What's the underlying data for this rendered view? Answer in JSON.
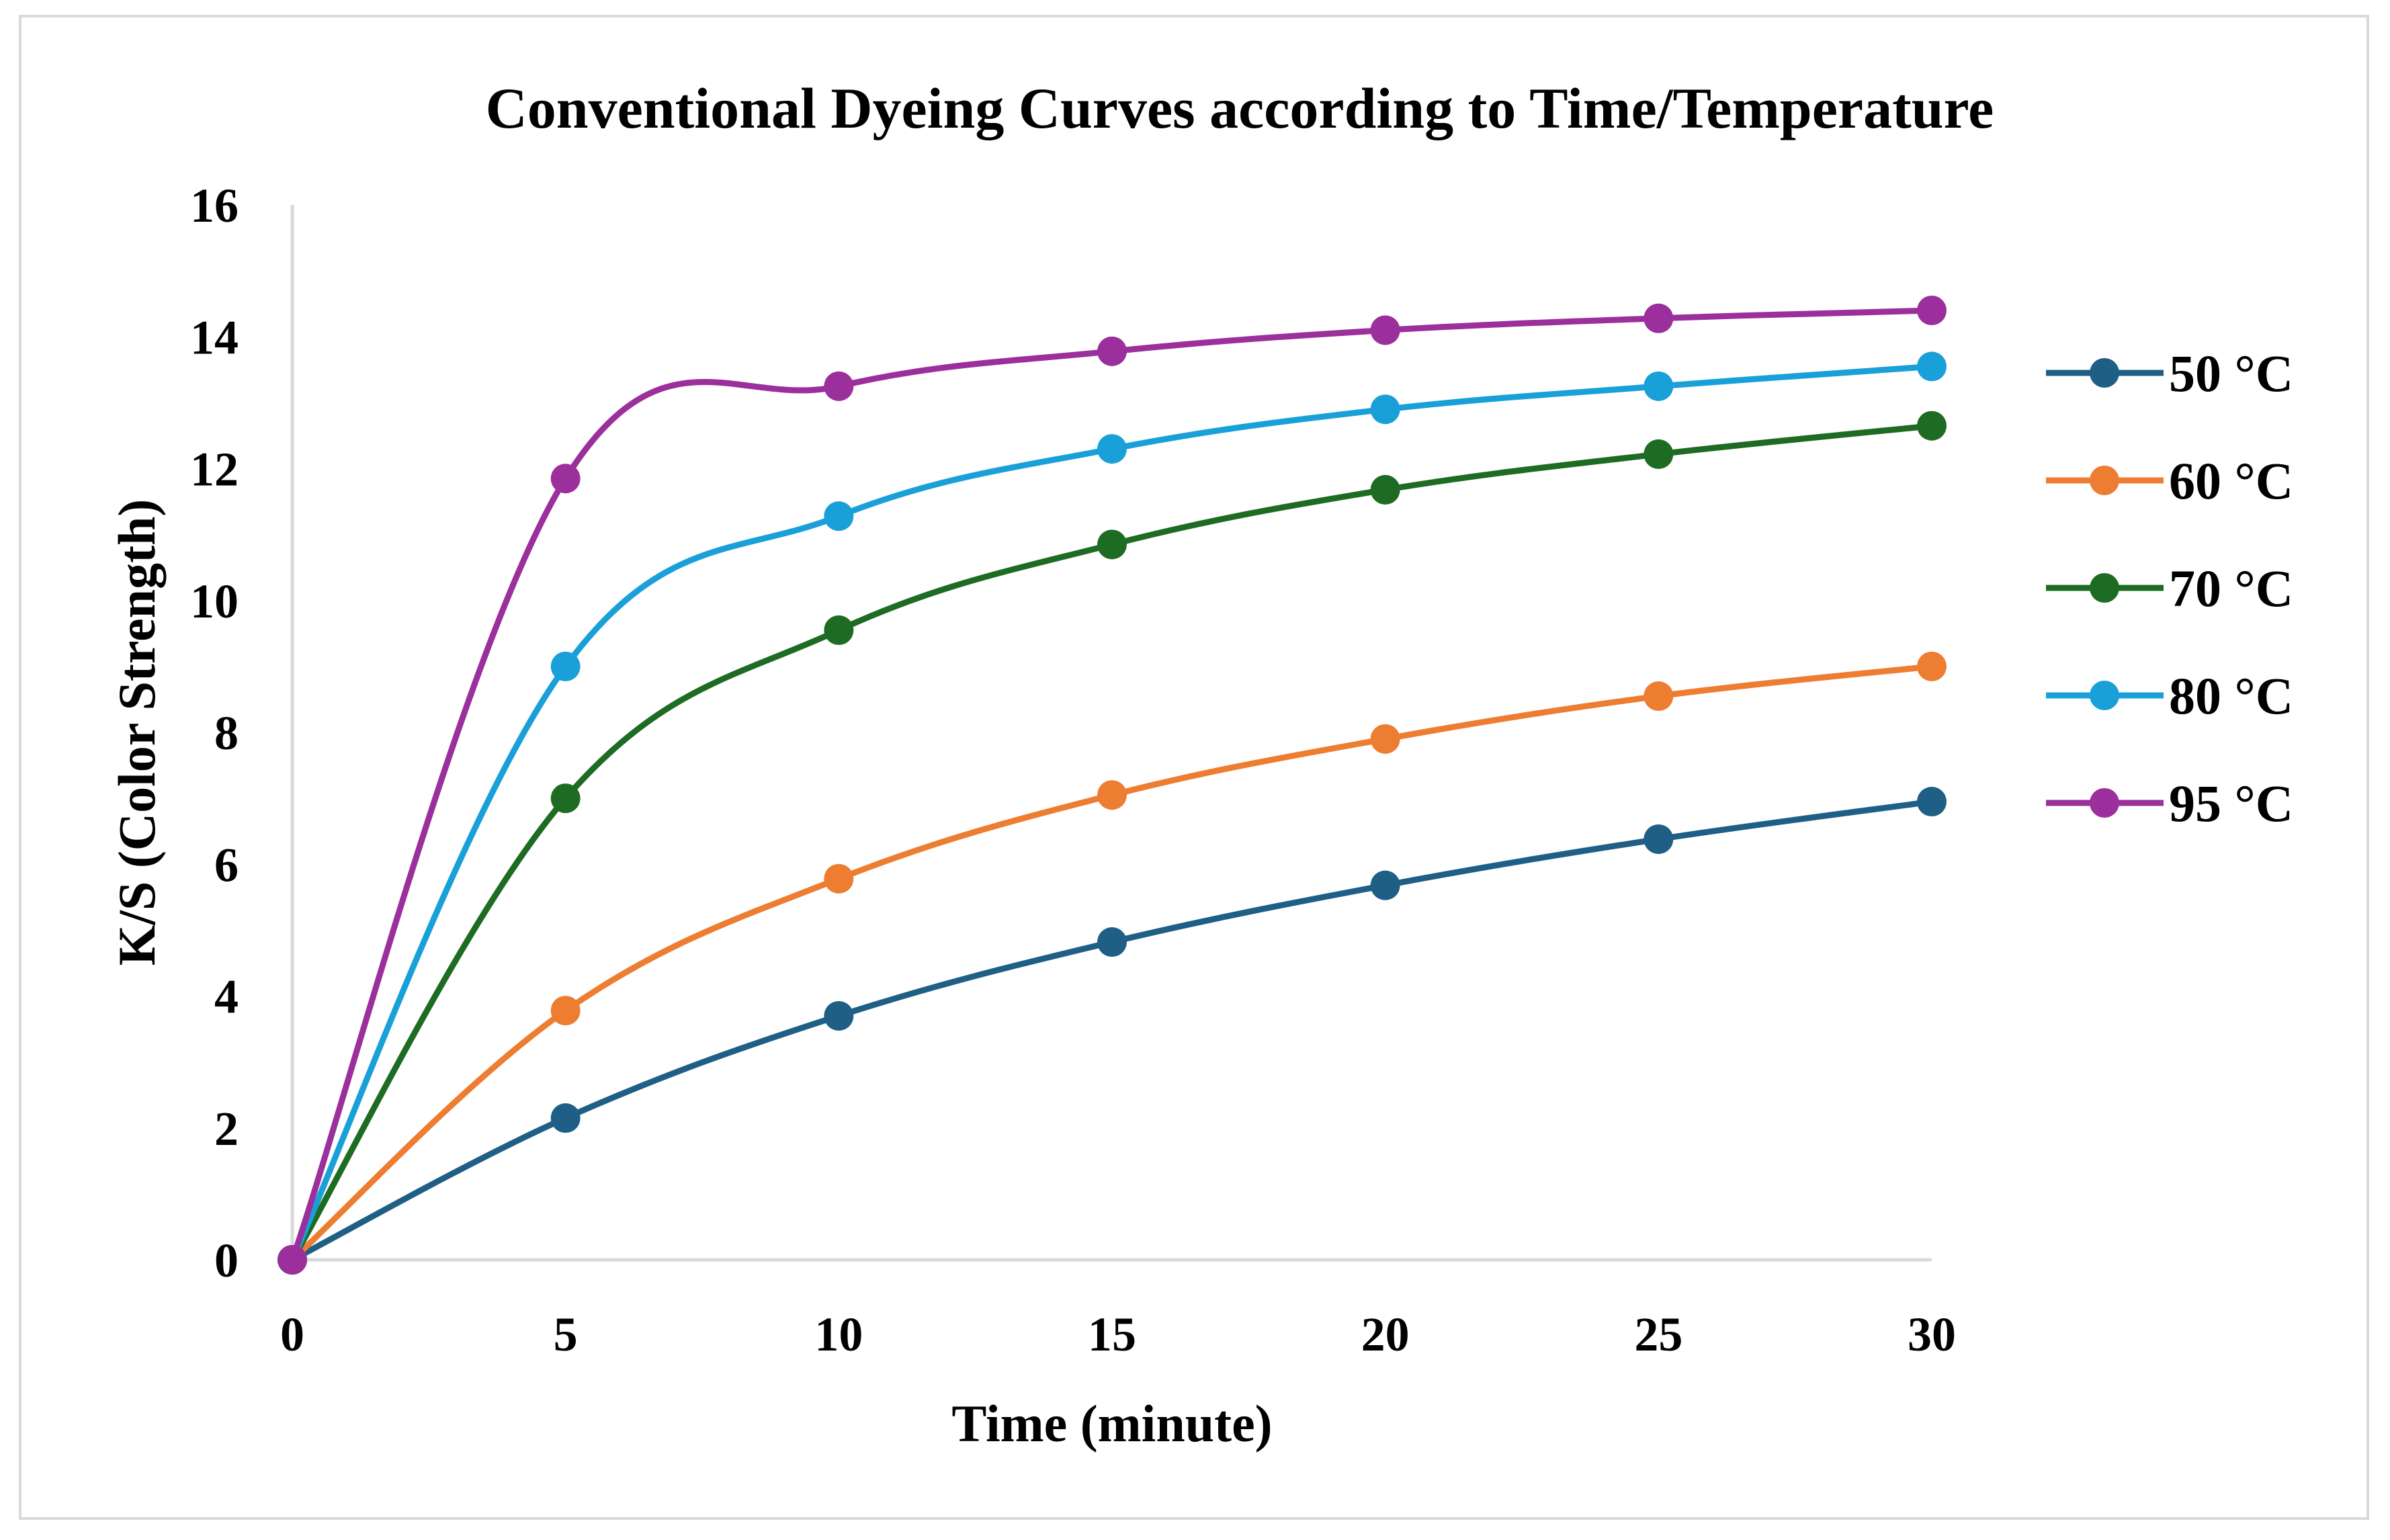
{
  "chart_data": {
    "type": "line",
    "title": "Conventional Dyeing Curves according to Time/Temperature",
    "xlabel": "Time (minute)",
    "ylabel": "K/S (Color Strength)",
    "x": [
      0,
      5,
      10,
      15,
      20,
      25,
      30
    ],
    "x_tick_labels": [
      "0",
      "5",
      "10",
      "15",
      "20",
      "25",
      "30"
    ],
    "y_tick_labels": [
      "0",
      "2",
      "4",
      "6",
      "8",
      "10",
      "12",
      "14",
      "16"
    ],
    "xlim": [
      0,
      30
    ],
    "ylim": [
      0,
      16
    ],
    "grid": false,
    "smooth": true,
    "legend_position": "right",
    "series": [
      {
        "name": "50 °C",
        "color": "#1f5f86",
        "values": [
          0,
          2.15,
          3.7,
          4.82,
          5.68,
          6.38,
          6.95
        ]
      },
      {
        "name": "60 °C",
        "color": "#ed7d31",
        "values": [
          0,
          3.78,
          5.78,
          7.05,
          7.9,
          8.55,
          9.0
        ]
      },
      {
        "name": "70 °C",
        "color": "#1e6b23",
        "values": [
          0,
          7.0,
          9.55,
          10.85,
          11.68,
          12.22,
          12.65
        ]
      },
      {
        "name": "80 °C",
        "color": "#1aa0d8",
        "values": [
          0,
          9.0,
          11.28,
          12.3,
          12.9,
          13.25,
          13.55
        ]
      },
      {
        "name": "95 °C",
        "color": "#9b2f9b",
        "values": [
          0,
          11.85,
          13.25,
          13.78,
          14.1,
          14.28,
          14.4
        ]
      }
    ]
  }
}
